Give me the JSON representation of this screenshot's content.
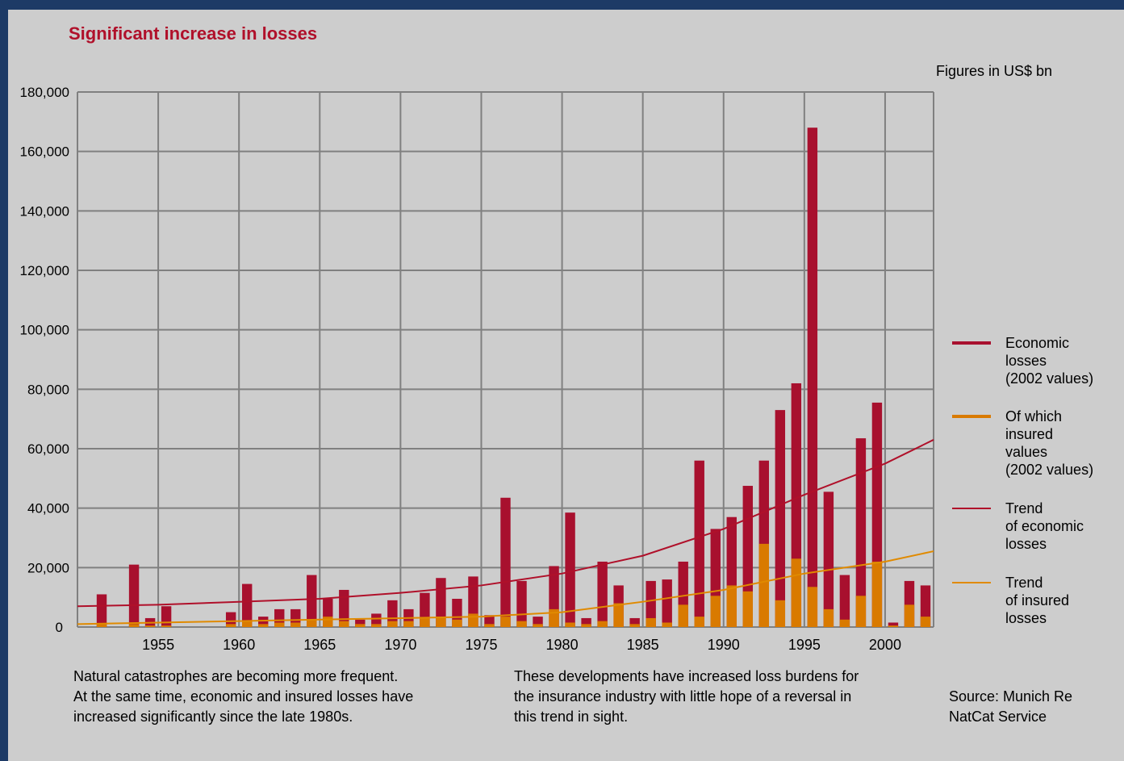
{
  "header": {
    "title": "Significant increase in losses",
    "units": "Figures in US$ bn"
  },
  "legend": [
    {
      "label": "Economic\nlosses\n(2002 values)",
      "color": "#a8102e",
      "kind": "bar",
      "icon": "thick-red-line"
    },
    {
      "label": "Of which\ninsured\nvalues\n(2002 values)",
      "color": "#d97a00",
      "kind": "bar",
      "icon": "thick-orange-line"
    },
    {
      "label": "Trend\nof economic\nlosses",
      "color": "#b0102a",
      "kind": "line",
      "icon": "thin-red-line"
    },
    {
      "label": "Trend\nof insured\nlosses",
      "color": "#e08a00",
      "kind": "line",
      "icon": "thin-orange-line"
    }
  ],
  "notes": {
    "left": "Natural catastrophes are becoming more frequent.\nAt the same time, economic and insured losses have\nincreased significantly since the late 1980s.",
    "middle": "These developments have increased loss burdens for\nthe insurance industry with little hope of a reversal in\nthis trend in sight.",
    "source": "Source: Munich Re\nNatCat Service"
  },
  "chart_data": {
    "type": "bar",
    "ylim": [
      0,
      180000
    ],
    "yticks": [
      "0",
      "20,000",
      "40,000",
      "60,000",
      "80,000",
      "100,000",
      "120,000",
      "140,000",
      "160,000",
      "180,000"
    ],
    "xtick_labels": [
      "1955",
      "1960",
      "1965",
      "1970",
      "1975",
      "1980",
      "1985",
      "1990",
      "1995",
      "2000"
    ],
    "x_start": 1950,
    "x_end": 2003,
    "series": [
      {
        "name": "Economic losses (2002 values)",
        "color": "#a8102e",
        "x": [
          1950,
          1951,
          1952,
          1953,
          1954,
          1955,
          1956,
          1957,
          1958,
          1959,
          1960,
          1961,
          1962,
          1963,
          1964,
          1965,
          1966,
          1967,
          1968,
          1969,
          1970,
          1971,
          1972,
          1973,
          1974,
          1975,
          1976,
          1977,
          1978,
          1979,
          1980,
          1981,
          1982,
          1983,
          1984,
          1985,
          1986,
          1987,
          1988,
          1989,
          1990,
          1991,
          1992,
          1993,
          1994,
          1995,
          1996,
          1997,
          1998,
          1999,
          2000,
          2001,
          2002
        ],
        "values": [
          0,
          11000,
          0,
          21000,
          3000,
          7000,
          0,
          0,
          0,
          5000,
          14500,
          3500,
          6000,
          6000,
          17500,
          9500,
          12500,
          2500,
          4500,
          9000,
          6000,
          11500,
          16500,
          9500,
          17000,
          4000,
          43500,
          15500,
          3500,
          20500,
          38500,
          3000,
          22000,
          14000,
          3000,
          15500,
          16000,
          22000,
          56000,
          33000,
          37000,
          47500,
          56000,
          73000,
          82000,
          168000,
          45500,
          17500,
          63500,
          75500,
          1500,
          15500,
          14000
        ]
      },
      {
        "name": "Of which insured values (2002 values)",
        "color": "#d97a00",
        "x": [
          1950,
          1951,
          1952,
          1953,
          1954,
          1955,
          1956,
          1957,
          1958,
          1959,
          1960,
          1961,
          1962,
          1963,
          1964,
          1965,
          1966,
          1967,
          1968,
          1969,
          1970,
          1971,
          1972,
          1973,
          1974,
          1975,
          1976,
          1977,
          1978,
          1979,
          1980,
          1981,
          1982,
          1983,
          1984,
          1985,
          1986,
          1987,
          1988,
          1989,
          1990,
          1991,
          1992,
          1993,
          1994,
          1995,
          1996,
          1997,
          1998,
          1999,
          2000,
          2001,
          2002
        ],
        "values": [
          0,
          1000,
          0,
          1000,
          500,
          500,
          0,
          0,
          0,
          1000,
          2000,
          1000,
          1500,
          1500,
          2500,
          3500,
          2000,
          1000,
          1000,
          2000,
          2000,
          3000,
          3500,
          2500,
          4500,
          1000,
          3500,
          2000,
          1000,
          6000,
          1500,
          1000,
          2000,
          8000,
          1000,
          3000,
          1500,
          7500,
          3500,
          10500,
          14000,
          12000,
          28000,
          9000,
          23000,
          13500,
          6000,
          2500,
          10500,
          22000,
          500,
          7500,
          3500
        ]
      },
      {
        "name": "Trend of economic losses",
        "color": "#b0102a",
        "x": [
          1950,
          1955,
          1960,
          1965,
          1970,
          1975,
          1980,
          1985,
          1990,
          1995,
          2000,
          2003
        ],
        "values": [
          7000,
          7500,
          8500,
          9500,
          11500,
          14000,
          18000,
          24000,
          33000,
          44500,
          55000,
          63000
        ]
      },
      {
        "name": "Trend of insured losses",
        "color": "#e08a00",
        "x": [
          1950,
          1955,
          1960,
          1965,
          1970,
          1975,
          1980,
          1985,
          1990,
          1995,
          2000,
          2003
        ],
        "values": [
          1000,
          1500,
          2000,
          2500,
          3000,
          3500,
          5000,
          8500,
          12500,
          18000,
          22000,
          25500
        ]
      }
    ]
  }
}
